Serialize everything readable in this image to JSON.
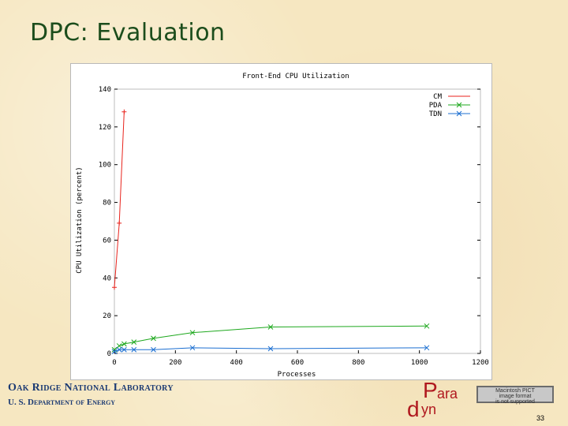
{
  "slide": {
    "title": "DPC: Evaluation",
    "footer_lab": "Oak Ridge National Laboratory",
    "footer_dept": "U. S. Department of Energy",
    "page_number": "33",
    "logo_text_top": "ara",
    "logo_text_bottom": "yn",
    "pict_placeholder": [
      "Macintosh PICT",
      "image format",
      "is not supported"
    ]
  },
  "chart_data": {
    "type": "line",
    "title": "Front-End CPU Utilization",
    "xlabel": "Processes",
    "ylabel": "CPU Utilization (percent)",
    "xlim": [
      0,
      1200
    ],
    "ylim": [
      0,
      140
    ],
    "xticks": [
      0,
      200,
      400,
      600,
      800,
      1000,
      1200
    ],
    "yticks": [
      0,
      20,
      40,
      60,
      80,
      100,
      120,
      140
    ],
    "legend_position": "top-right",
    "grid": false,
    "series": [
      {
        "name": "CM",
        "color": "#e8231c",
        "marker": "plus",
        "x": [
          0,
          16,
          32
        ],
        "y": [
          35,
          69,
          128
        ]
      },
      {
        "name": "PDA",
        "color": "#1ea81e",
        "marker": "cross",
        "x": [
          0,
          16,
          32,
          64,
          128,
          256,
          512,
          1024
        ],
        "y": [
          2,
          4,
          5,
          6,
          8,
          11,
          14,
          14.5
        ]
      },
      {
        "name": "TDN",
        "color": "#1c6fd1",
        "marker": "cross",
        "x": [
          0,
          16,
          32,
          64,
          128,
          256,
          512,
          1024
        ],
        "y": [
          1,
          2,
          2,
          2,
          2,
          3,
          2.5,
          3
        ]
      }
    ]
  }
}
